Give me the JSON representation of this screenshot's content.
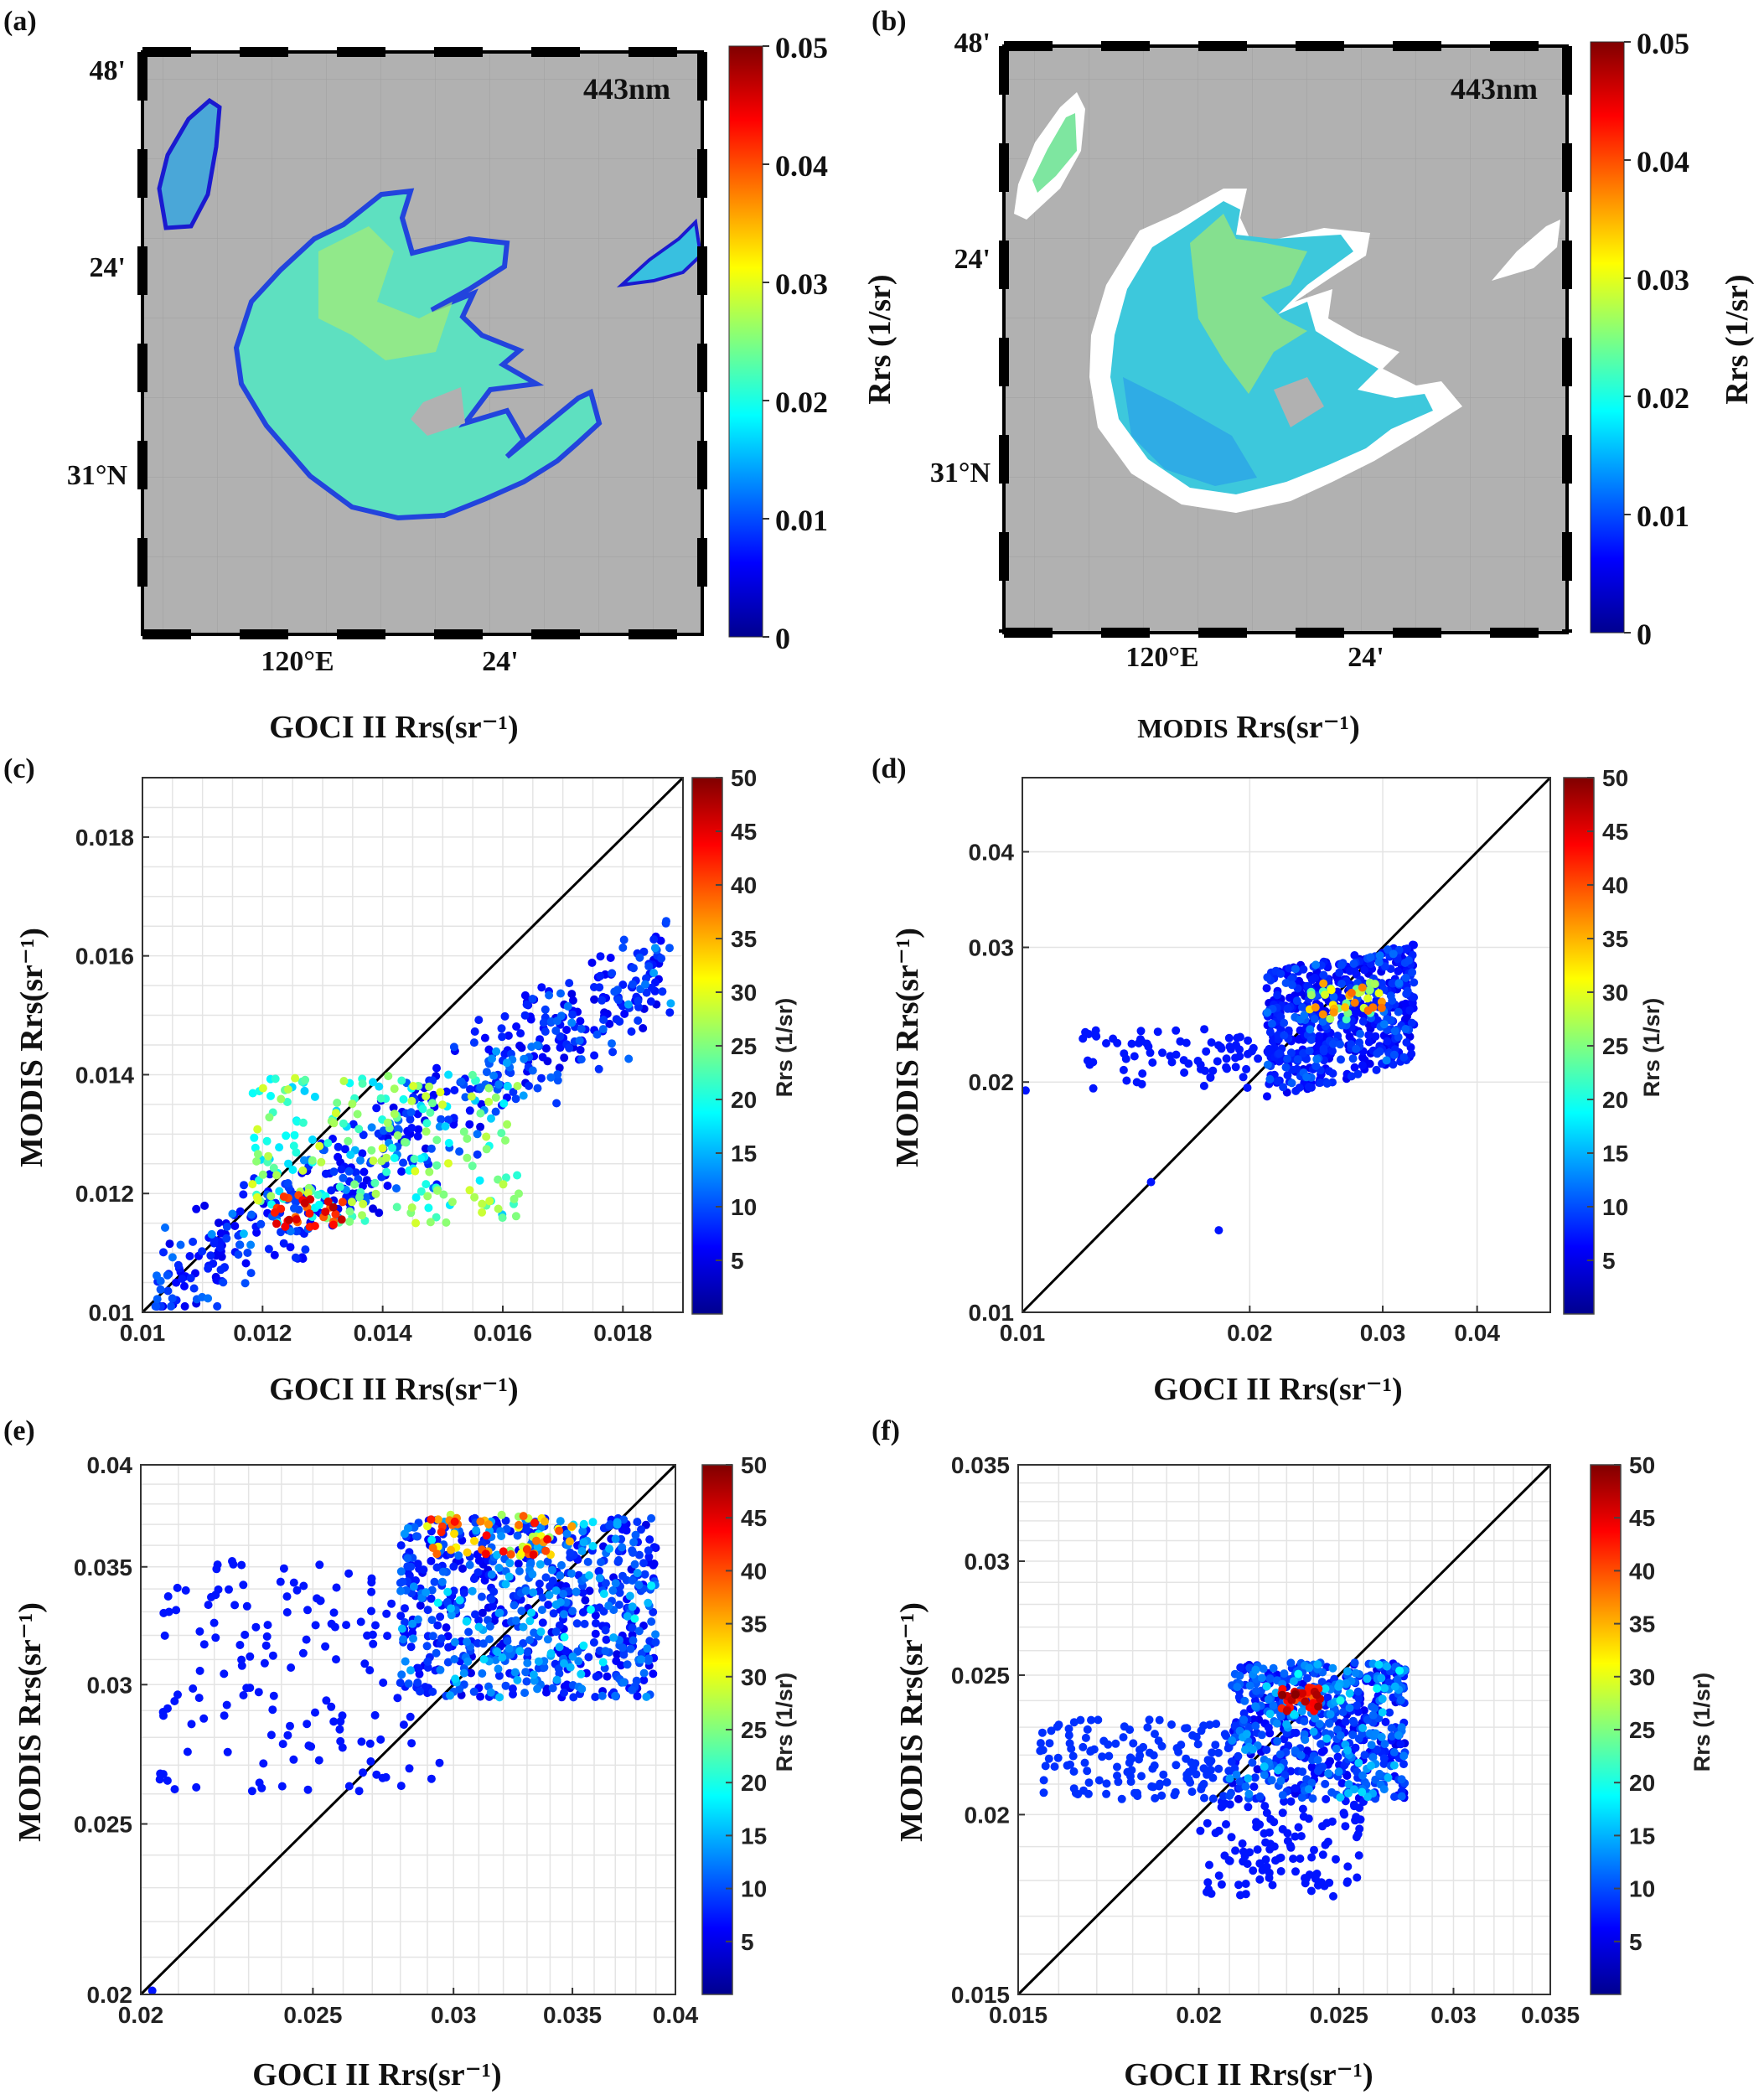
{
  "chart_data": [
    {
      "panel": "(a)",
      "type": "heatmap",
      "title": "443nm",
      "xlabel": "GOCI II Rrs(sr⁻¹)",
      "lat_ticks": [
        "48'",
        "24'",
        "31°N"
      ],
      "lon_ticks": [
        "120°E",
        "24'"
      ],
      "colorbar": {
        "label": "Rrs (1/sr)",
        "ticks": [
          "0.05",
          "0.04",
          "0.03",
          "0.02",
          "0.01",
          "0"
        ],
        "range": [
          0,
          0.05
        ]
      }
    },
    {
      "panel": "(b)",
      "type": "heatmap",
      "title": "443nm",
      "xlabel_part1": "MODIS",
      "xlabel_part2": "Rrs(sr⁻¹)",
      "lat_ticks": [
        "48'",
        "24'",
        "31°N"
      ],
      "lon_ticks": [
        "120°E",
        "24'"
      ],
      "colorbar": {
        "label": "Rrs (1/sr)",
        "ticks": [
          "0.05",
          "0.04",
          "0.03",
          "0.02",
          "0.01",
          "0"
        ],
        "range": [
          0,
          0.05
        ]
      }
    },
    {
      "panel": "(c)",
      "type": "scatter",
      "xlabel": "GOCI II Rrs(sr⁻¹)",
      "ylabel": "MODIS Rrs(sr⁻¹)",
      "xlim": [
        0.01,
        0.019
      ],
      "ylim": [
        0.01,
        0.019
      ],
      "xticks": [
        0.01,
        0.012,
        0.014,
        0.016,
        0.018
      ],
      "yticks": [
        0.01,
        0.012,
        0.014,
        0.016,
        0.018
      ],
      "tick_labels": [
        "0.01",
        "0.012",
        "0.014",
        "0.016",
        "0.018"
      ],
      "colorbar": {
        "label": "Rrs (1/sr)",
        "ticks": [
          5,
          10,
          15,
          20,
          25,
          30,
          35,
          40,
          45,
          50
        ],
        "range": [
          0,
          50
        ]
      }
    },
    {
      "panel": "(d)",
      "type": "scatter",
      "scale": "log",
      "xlabel": "GOCI II Rrs(sr⁻¹)",
      "ylabel": "MODIS Rrs(sr⁻¹)",
      "xlim": [
        0.01,
        0.05
      ],
      "ylim": [
        0.01,
        0.05
      ],
      "xticks": [
        0.01,
        0.02,
        0.03,
        0.04
      ],
      "yticks": [
        0.01,
        0.02,
        0.03,
        0.04
      ],
      "tick_labels": [
        "0.01",
        "0.02",
        "0.03",
        "0.04"
      ],
      "colorbar": {
        "label": "Rrs (1/sr)",
        "ticks": [
          5,
          10,
          15,
          20,
          25,
          30,
          35,
          40,
          45,
          50
        ],
        "range": [
          0,
          50
        ]
      }
    },
    {
      "panel": "(e)",
      "type": "scatter",
      "scale": "log",
      "xlabel": "GOCI II Rrs(sr⁻¹)",
      "ylabel": "MODIS Rrs(sr⁻¹)",
      "xlim": [
        0.02,
        0.04
      ],
      "ylim": [
        0.02,
        0.04
      ],
      "xticks": [
        0.02,
        0.025,
        0.03,
        0.035,
        0.04
      ],
      "yticks": [
        0.02,
        0.025,
        0.03,
        0.035,
        0.04
      ],
      "tick_labels": [
        "0.02",
        "0.025",
        "0.03",
        "0.035",
        "0.04"
      ],
      "colorbar": {
        "label": "Rrs (1/sr)",
        "ticks": [
          5,
          10,
          15,
          20,
          25,
          30,
          35,
          40,
          45,
          50
        ],
        "range": [
          0,
          50
        ]
      }
    },
    {
      "panel": "(f)",
      "type": "scatter",
      "scale": "log",
      "xlabel": "GOCI II Rrs(sr⁻¹)",
      "ylabel": "MODIS Rrs(sr⁻¹)",
      "xlim": [
        0.015,
        0.035
      ],
      "ylim": [
        0.015,
        0.035
      ],
      "xticks": [
        0.015,
        0.02,
        0.025,
        0.03,
        0.035
      ],
      "yticks": [
        0.015,
        0.02,
        0.025,
        0.03,
        0.035
      ],
      "tick_labels": [
        "0.015",
        "0.02",
        "0.025",
        "0.03",
        "0.035"
      ],
      "colorbar": {
        "label": "Rrs (1/sr)",
        "ticks": [
          5,
          10,
          15,
          20,
          25,
          30,
          35,
          40,
          45,
          50
        ],
        "range": [
          0,
          50
        ]
      }
    }
  ]
}
